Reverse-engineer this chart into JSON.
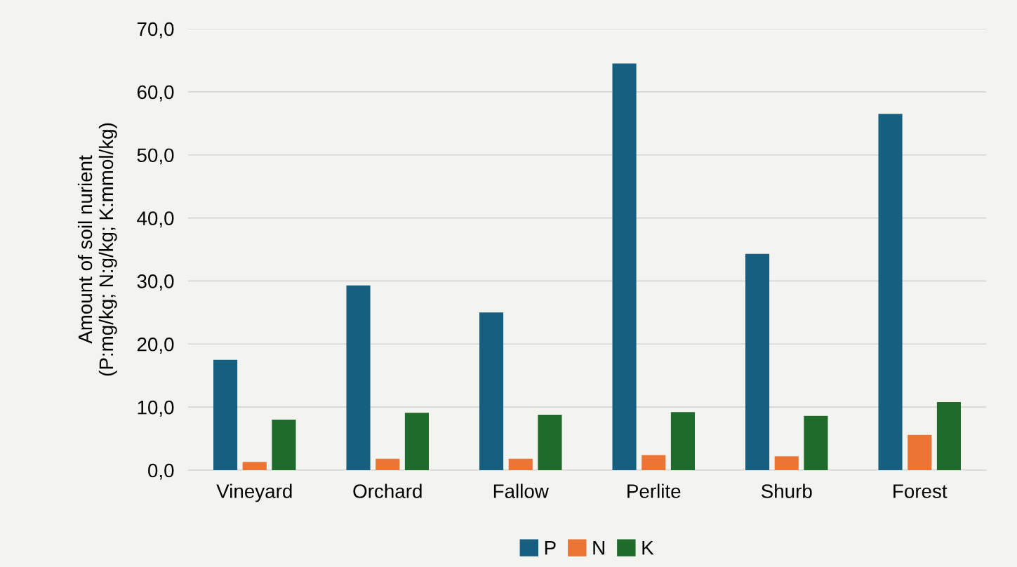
{
  "chart_data": {
    "type": "bar",
    "ylabel": "Amount of soil nurient\n(P:mg/kg; N:g/kg; K:mmol/kg)",
    "categories": [
      "Vineyard",
      "Orchard",
      "Fallow",
      "Perlite",
      "Shurb",
      "Forest"
    ],
    "series": [
      {
        "name": "P",
        "color": "#175f81",
        "values": [
          17.5,
          29.3,
          25.0,
          64.5,
          34.3,
          56.5
        ]
      },
      {
        "name": "N",
        "color": "#ec7435",
        "values": [
          1.3,
          1.8,
          1.8,
          2.4,
          2.2,
          5.6
        ]
      },
      {
        "name": "K",
        "color": "#1e6b2b",
        "values": [
          8.0,
          9.1,
          8.8,
          9.2,
          8.6,
          10.8
        ]
      }
    ],
    "ylim": [
      0,
      70
    ],
    "yticks": [
      {
        "value": 0,
        "label": "0,0"
      },
      {
        "value": 10,
        "label": "10,0"
      },
      {
        "value": 20,
        "label": "20,0"
      },
      {
        "value": 30,
        "label": "30,0"
      },
      {
        "value": 40,
        "label": "40,0"
      },
      {
        "value": 50,
        "label": "50,0"
      },
      {
        "value": 60,
        "label": "60,0"
      },
      {
        "value": 70,
        "label": "70,0"
      }
    ],
    "grid": "y",
    "legend": "bottom"
  }
}
